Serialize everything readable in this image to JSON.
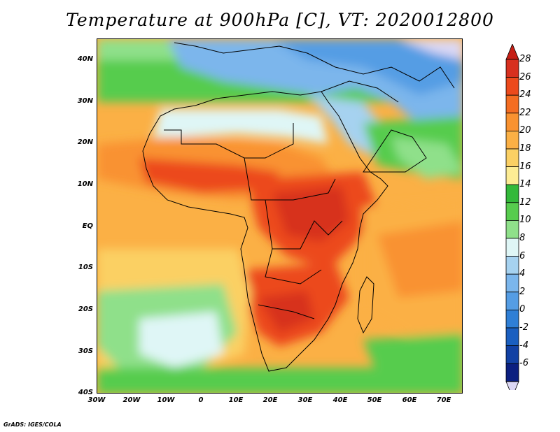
{
  "title": "Temperature at 900hPa [C], VT: 2020012800",
  "credit": "GrADS: IGES/COLA",
  "y_ticks": [
    "40N",
    "30N",
    "20N",
    "10N",
    "EQ",
    "10S",
    "20S",
    "30S",
    "40S"
  ],
  "x_ticks": [
    "30W",
    "20W",
    "10W",
    "0",
    "10E",
    "20E",
    "30E",
    "40E",
    "50E",
    "60E",
    "70E"
  ],
  "colorbar": {
    "labels": [
      "28",
      "26",
      "24",
      "22",
      "20",
      "18",
      "16",
      "14",
      "12",
      "10",
      "8",
      "6",
      "4",
      "2",
      "0",
      "-2",
      "-4",
      "-6"
    ],
    "colors": [
      "#d7301f",
      "#ec4a1c",
      "#f46d22",
      "#f99230",
      "#fbb045",
      "#fbd064",
      "#fdec94",
      "#33b93a",
      "#57cc4e",
      "#8fe08a",
      "#dff6f6",
      "#a6d2f0",
      "#7bb6ec",
      "#559de4",
      "#2f7fd6",
      "#1a5fc0",
      "#1241a4",
      "#0b1f80"
    ],
    "over_color": "#c51f16",
    "under_color": "#dcd8f4"
  }
}
